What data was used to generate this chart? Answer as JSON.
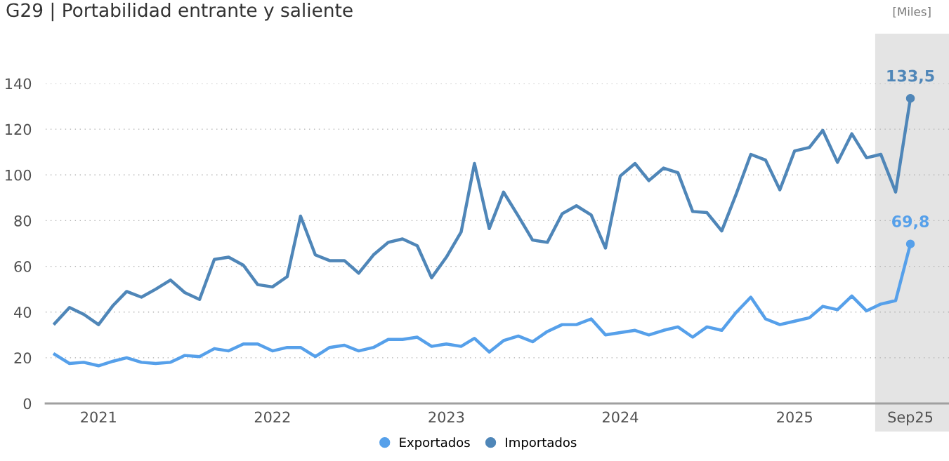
{
  "chart_data": {
    "type": "line",
    "title": "G29 | Portabilidad entrante y saliente",
    "annotations": [
      "[Miles]"
    ],
    "x": [
      "2020-10",
      "2020-11",
      "2020-12",
      "2021-01",
      "2021-02",
      "2021-03",
      "2021-04",
      "2021-05",
      "2021-06",
      "2021-07",
      "2021-08",
      "2021-09",
      "2021-10",
      "2021-11",
      "2021-12",
      "2022-01",
      "2022-02",
      "2022-03",
      "2022-04",
      "2022-05",
      "2022-06",
      "2022-07",
      "2022-08",
      "2022-09",
      "2022-10",
      "2022-11",
      "2022-12",
      "2023-01",
      "2023-02",
      "2023-03",
      "2023-04",
      "2023-05",
      "2023-06",
      "2023-07",
      "2023-08",
      "2023-09",
      "2023-10",
      "2023-11",
      "2023-12",
      "2024-01",
      "2024-02",
      "2024-03",
      "2024-04",
      "2024-05",
      "2024-06",
      "2024-07",
      "2024-08",
      "2024-09",
      "2024-10",
      "2024-11",
      "2024-12",
      "2025-01",
      "2025-02",
      "2025-03",
      "2025-04",
      "2025-05",
      "2025-06",
      "2025-07",
      "2025-08",
      "2025-09"
    ],
    "series": [
      {
        "name": "Exportados",
        "color": "#56a0ea",
        "values": [
          21.5,
          17.5,
          18,
          16.5,
          18.5,
          20,
          18,
          17.5,
          18,
          21,
          20.5,
          24,
          23,
          26,
          26,
          23,
          24.5,
          24.5,
          20.5,
          24.5,
          25.5,
          23,
          24.5,
          28,
          28,
          29,
          25,
          26,
          25,
          28.5,
          22.5,
          27.5,
          29.5,
          27,
          31.5,
          34.5,
          34.5,
          37,
          30,
          31,
          32,
          30,
          32,
          33.5,
          29,
          33.5,
          32,
          40,
          46.5,
          37,
          34.5,
          36,
          37.5,
          42.5,
          41,
          47,
          40.5,
          43.5,
          45,
          69.8
        ],
        "value_labels": [
          null,
          null,
          null,
          null,
          null,
          null,
          null,
          null,
          null,
          null,
          null,
          null,
          null,
          null,
          null,
          null,
          null,
          null,
          null,
          null,
          null,
          null,
          null,
          null,
          null,
          null,
          null,
          null,
          null,
          null,
          null,
          null,
          null,
          null,
          null,
          null,
          null,
          null,
          null,
          null,
          null,
          null,
          null,
          null,
          null,
          null,
          null,
          null,
          null,
          null,
          null,
          null,
          null,
          null,
          null,
          null,
          null,
          null,
          null,
          "69,8"
        ]
      },
      {
        "name": "Importados",
        "color": "#4f86b8",
        "values": [
          35,
          42,
          39,
          34.5,
          43,
          49,
          46.5,
          50,
          54,
          48.5,
          45.5,
          63,
          64,
          60.5,
          52,
          51,
          55.5,
          82,
          65,
          62.5,
          62.5,
          57,
          65,
          70.5,
          72,
          69,
          55,
          64,
          75,
          105,
          76.5,
          92.5,
          82,
          71.5,
          70.5,
          83,
          86.5,
          82.5,
          68,
          99.5,
          105,
          97.5,
          103,
          101,
          84,
          83.5,
          75.5,
          92,
          109,
          106.5,
          93.5,
          110.5,
          112,
          119.5,
          105.5,
          118,
          107.5,
          109,
          92.5,
          133.5
        ],
        "value_labels": [
          null,
          null,
          null,
          null,
          null,
          null,
          null,
          null,
          null,
          null,
          null,
          null,
          null,
          null,
          null,
          null,
          null,
          null,
          null,
          null,
          null,
          null,
          null,
          null,
          null,
          null,
          null,
          null,
          null,
          null,
          null,
          null,
          null,
          null,
          null,
          null,
          null,
          null,
          null,
          null,
          null,
          null,
          null,
          null,
          null,
          null,
          null,
          null,
          null,
          null,
          null,
          null,
          null,
          null,
          null,
          null,
          null,
          null,
          null,
          "133,5"
        ]
      }
    ],
    "xlim": [
      "2020-09-12",
      "2025-11-21"
    ],
    "xticks": [
      {
        "value": "2021-01",
        "label": "2021"
      },
      {
        "value": "2022-01",
        "label": "2022"
      },
      {
        "value": "2023-01",
        "label": "2023"
      },
      {
        "value": "2024-01",
        "label": "2024"
      },
      {
        "value": "2025-01",
        "label": "2025"
      },
      {
        "value": "2025-09",
        "label": "Sep25"
      }
    ],
    "ylim": [
      0,
      140
    ],
    "yticks": [
      0,
      20,
      40,
      60,
      80,
      100,
      120,
      140
    ],
    "bands": [
      {
        "axis": "x",
        "from": "2025-06-19",
        "to": "2025-11-21",
        "color": "#e4e4e4"
      }
    ],
    "grid": "y",
    "legend": "bottom",
    "marker": "none",
    "line_style": "solid"
  }
}
